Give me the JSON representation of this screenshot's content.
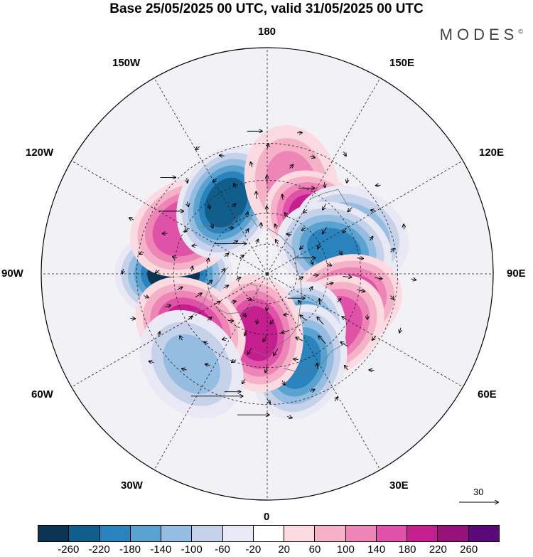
{
  "title": "Base 25/05/2025 00 UTC, valid 31/05/2025 00 UTC",
  "brand": "MODES",
  "brand_mark": "©",
  "longitude_labels": {
    "top": "180",
    "bottom": "0",
    "left": "90W",
    "right": "90E",
    "w150": "150W",
    "e150": "150E",
    "w120": "120W",
    "e120": "120E",
    "w60": "60W",
    "e60": "60E",
    "w30": "30W",
    "e30": "30E"
  },
  "reference_vector": "30",
  "colorbar": {
    "colors": [
      "#0b3552",
      "#115e8c",
      "#2a83bd",
      "#5aa3d0",
      "#95bde1",
      "#c6d2ea",
      "#e9e8f5",
      "#ffffff",
      "#fbdbe1",
      "#f5b1c8",
      "#ed86b6",
      "#e052a7",
      "#c41e8f",
      "#96137a",
      "#5a0a78"
    ],
    "ticks": [
      "-260",
      "-220",
      "-180",
      "-140",
      "-100",
      "-60",
      "-20",
      "20",
      "60",
      "100",
      "140",
      "180",
      "220",
      "260"
    ]
  },
  "map_data": {
    "projection": "north-polar-stereographic",
    "field": "geopotential anomaly with wind vectors",
    "anomaly_centers": [
      {
        "lon": -90,
        "lat": 45,
        "value": -260
      },
      {
        "lon": -120,
        "lat": 45,
        "value": 180
      },
      {
        "lon": -150,
        "lat": 50,
        "value": -220
      },
      {
        "lon": 165,
        "lat": 45,
        "value": 120
      },
      {
        "lon": 135,
        "lat": 55,
        "value": 220
      },
      {
        "lon": 115,
        "lat": 45,
        "value": -160
      },
      {
        "lon": 110,
        "lat": 55,
        "value": -180
      },
      {
        "lon": 70,
        "lat": 50,
        "value": 200
      },
      {
        "lon": 50,
        "lat": 50,
        "value": 180
      },
      {
        "lon": 25,
        "lat": 55,
        "value": -220
      },
      {
        "lon": 20,
        "lat": 45,
        "value": -200
      },
      {
        "lon": -10,
        "lat": 60,
        "value": 200
      },
      {
        "lon": -55,
        "lat": 45,
        "value": 200
      },
      {
        "lon": -40,
        "lat": 35,
        "value": -100
      }
    ]
  }
}
